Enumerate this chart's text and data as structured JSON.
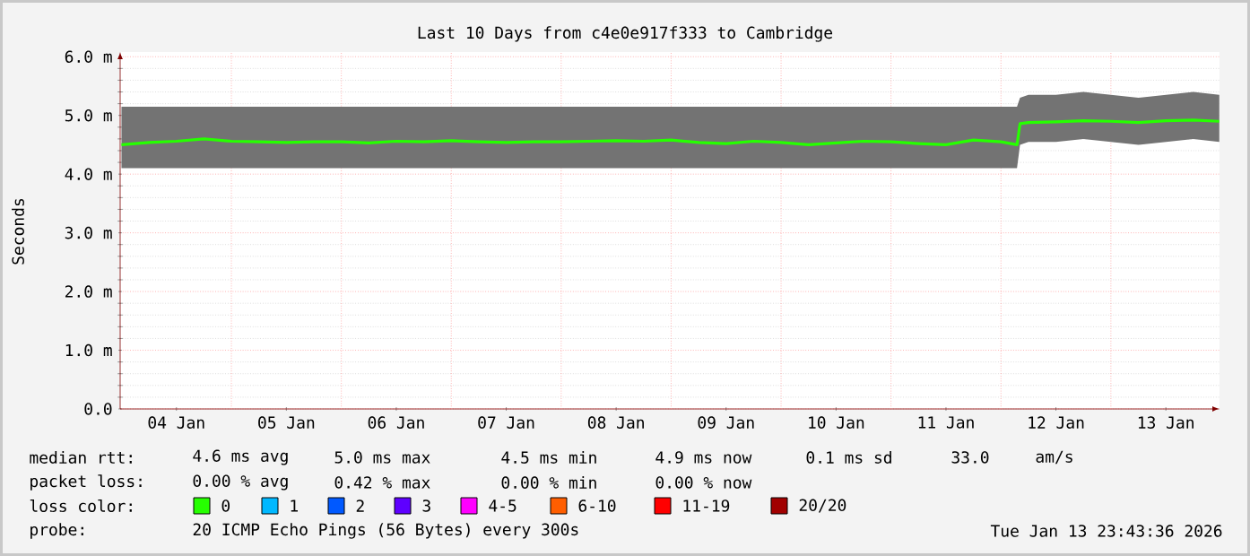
{
  "chart_data": {
    "type": "line",
    "title": "Last 10 Days from c4e0e917f333 to Cambridge",
    "ylabel": "Seconds",
    "legend_title": "loss color:",
    "legend": "bottom",
    "grid": true,
    "xlim": [
      "2026-01-03T23:43",
      "2026-01-13T23:43"
    ],
    "ylim": [
      0,
      6.08
    ],
    "xticks": [
      {
        "value": "2026-01-04T12:00",
        "label": "04 Jan"
      },
      {
        "value": "2026-01-05T00:00",
        "label": null
      },
      {
        "value": "2026-01-05T12:00",
        "label": "05 Jan"
      },
      {
        "value": "2026-01-06T00:00",
        "label": null
      },
      {
        "value": "2026-01-06T12:00",
        "label": "06 Jan"
      },
      {
        "value": "2026-01-07T00:00",
        "label": null
      },
      {
        "value": "2026-01-07T12:00",
        "label": "07 Jan"
      },
      {
        "value": "2026-01-08T00:00",
        "label": null
      },
      {
        "value": "2026-01-08T12:00",
        "label": "08 Jan"
      },
      {
        "value": "2026-01-09T00:00",
        "label": null
      },
      {
        "value": "2026-01-09T12:00",
        "label": "09 Jan"
      },
      {
        "value": "2026-01-10T00:00",
        "label": null
      },
      {
        "value": "2026-01-10T12:00",
        "label": "10 Jan"
      },
      {
        "value": "2026-01-11T00:00",
        "label": null
      },
      {
        "value": "2026-01-11T12:00",
        "label": "11 Jan"
      },
      {
        "value": "2026-01-12T00:00",
        "label": null
      },
      {
        "value": "2026-01-12T12:00",
        "label": "12 Jan"
      },
      {
        "value": "2026-01-13T00:00",
        "label": null
      },
      {
        "value": "2026-01-13T12:00",
        "label": "13 Jan"
      }
    ],
    "yticks": [
      {
        "value": 0,
        "label": "0.0"
      },
      {
        "value": 1,
        "label": "1.0 m"
      },
      {
        "value": 2,
        "label": "2.0 m"
      },
      {
        "value": 3,
        "label": "3.0 m"
      },
      {
        "value": 4,
        "label": "4.0 m"
      },
      {
        "value": 5,
        "label": "5.0 m"
      },
      {
        "value": 6,
        "label": "6.0 m"
      }
    ],
    "x": [
      "2026-01-04T00:00",
      "2026-01-04T06:00",
      "2026-01-04T12:00",
      "2026-01-04T18:00",
      "2026-01-05T00:00",
      "2026-01-05T06:00",
      "2026-01-05T12:00",
      "2026-01-05T18:00",
      "2026-01-06T00:00",
      "2026-01-06T06:00",
      "2026-01-06T12:00",
      "2026-01-06T18:00",
      "2026-01-07T00:00",
      "2026-01-07T06:00",
      "2026-01-07T12:00",
      "2026-01-07T18:00",
      "2026-01-08T00:00",
      "2026-01-08T06:00",
      "2026-01-08T12:00",
      "2026-01-08T18:00",
      "2026-01-09T00:00",
      "2026-01-09T06:00",
      "2026-01-09T12:00",
      "2026-01-09T18:00",
      "2026-01-10T00:00",
      "2026-01-10T06:00",
      "2026-01-10T12:00",
      "2026-01-10T18:00",
      "2026-01-11T00:00",
      "2026-01-11T06:00",
      "2026-01-11T12:00",
      "2026-01-11T18:00",
      "2026-01-12T00:00",
      "2026-01-12T03:30",
      "2026-01-12T04:10",
      "2026-01-12T06:00",
      "2026-01-12T12:00",
      "2026-01-12T18:00",
      "2026-01-13T00:00",
      "2026-01-13T06:00",
      "2026-01-13T12:00",
      "2026-01-13T18:00",
      "2026-01-13T23:40"
    ],
    "series": [
      {
        "name": "0",
        "color": "#26ff00",
        "values": [
          4.5,
          4.54,
          4.56,
          4.6,
          4.56,
          4.55,
          4.54,
          4.55,
          4.55,
          4.53,
          4.56,
          4.55,
          4.57,
          4.55,
          4.54,
          4.55,
          4.55,
          4.56,
          4.57,
          4.56,
          4.58,
          4.54,
          4.52,
          4.56,
          4.54,
          4.5,
          4.53,
          4.56,
          4.55,
          4.52,
          4.5,
          4.58,
          4.55,
          4.5,
          4.86,
          4.88,
          4.89,
          4.91,
          4.9,
          4.88,
          4.91,
          4.92,
          4.9
        ],
        "lower": [
          4.1,
          4.1,
          4.1,
          4.1,
          4.1,
          4.1,
          4.1,
          4.1,
          4.1,
          4.1,
          4.1,
          4.1,
          4.1,
          4.1,
          4.1,
          4.1,
          4.1,
          4.1,
          4.1,
          4.1,
          4.1,
          4.1,
          4.1,
          4.1,
          4.1,
          4.1,
          4.1,
          4.1,
          4.1,
          4.1,
          4.1,
          4.1,
          4.1,
          4.1,
          4.5,
          4.55,
          4.55,
          4.6,
          4.55,
          4.5,
          4.55,
          4.6,
          4.55
        ],
        "upper": [
          5.15,
          5.15,
          5.15,
          5.15,
          5.15,
          5.15,
          5.15,
          5.15,
          5.15,
          5.15,
          5.15,
          5.15,
          5.15,
          5.15,
          5.15,
          5.15,
          5.15,
          5.15,
          5.15,
          5.15,
          5.15,
          5.15,
          5.15,
          5.15,
          5.15,
          5.15,
          5.15,
          5.15,
          5.15,
          5.15,
          5.15,
          5.15,
          5.15,
          5.15,
          5.3,
          5.35,
          5.35,
          5.4,
          5.35,
          5.3,
          5.35,
          5.4,
          5.35
        ]
      },
      {
        "name": "1",
        "color": "#00b8ff",
        "values": [
          null,
          null,
          null,
          null,
          null,
          null,
          null,
          null,
          null,
          null,
          null,
          null,
          null,
          null,
          null,
          null,
          null,
          null,
          null,
          null,
          null,
          null,
          null,
          null,
          null,
          null,
          null,
          null,
          null,
          null,
          null,
          null,
          null,
          null,
          null,
          null,
          null,
          null,
          null,
          null,
          null,
          null,
          null
        ]
      },
      {
        "name": "2",
        "color": "#0059ff",
        "values": [
          null,
          null,
          null,
          null,
          null,
          null,
          null,
          null,
          null,
          null,
          null,
          null,
          null,
          null,
          null,
          null,
          null,
          null,
          null,
          null,
          null,
          null,
          null,
          null,
          null,
          null,
          null,
          null,
          null,
          null,
          null,
          null,
          null,
          null,
          null,
          null,
          null,
          null,
          null,
          null,
          null,
          null,
          null
        ]
      },
      {
        "name": "3",
        "color": "#5e00ff",
        "values": [
          null,
          null,
          null,
          null,
          null,
          null,
          null,
          null,
          null,
          null,
          null,
          null,
          null,
          null,
          null,
          null,
          null,
          null,
          null,
          null,
          null,
          null,
          null,
          null,
          null,
          null,
          null,
          null,
          null,
          null,
          null,
          null,
          null,
          null,
          null,
          null,
          null,
          null,
          null,
          null,
          null,
          null,
          null
        ]
      },
      {
        "name": "4-5",
        "color": "#ff00ff",
        "values": [
          null,
          null,
          null,
          null,
          null,
          null,
          null,
          null,
          null,
          null,
          null,
          null,
          null,
          null,
          null,
          null,
          null,
          null,
          null,
          null,
          null,
          null,
          null,
          null,
          null,
          null,
          null,
          null,
          null,
          null,
          null,
          null,
          null,
          null,
          null,
          null,
          null,
          null,
          null,
          null,
          null,
          null,
          null
        ]
      },
      {
        "name": "6-10",
        "color": "#ff5e00",
        "values": [
          null,
          null,
          null,
          null,
          null,
          null,
          null,
          null,
          null,
          null,
          null,
          null,
          null,
          null,
          null,
          null,
          null,
          null,
          null,
          null,
          null,
          null,
          null,
          null,
          null,
          null,
          null,
          null,
          null,
          null,
          null,
          null,
          null,
          null,
          null,
          null,
          null,
          null,
          null,
          null,
          null,
          null,
          null
        ]
      },
      {
        "name": "11-19",
        "color": "#ff0000",
        "values": [
          null,
          null,
          null,
          null,
          null,
          null,
          null,
          null,
          null,
          null,
          null,
          null,
          null,
          null,
          null,
          null,
          null,
          null,
          null,
          null,
          null,
          null,
          null,
          null,
          null,
          null,
          null,
          null,
          null,
          null,
          null,
          null,
          null,
          null,
          null,
          null,
          null,
          null,
          null,
          null,
          null,
          null,
          null
        ]
      },
      {
        "name": "20/20",
        "color": "#a10000",
        "values": [
          null,
          null,
          null,
          null,
          null,
          null,
          null,
          null,
          null,
          null,
          null,
          null,
          null,
          null,
          null,
          null,
          null,
          null,
          null,
          null,
          null,
          null,
          null,
          null,
          null,
          null,
          null,
          null,
          null,
          null,
          null,
          null,
          null,
          null,
          null,
          null,
          null,
          null,
          null,
          null,
          null,
          null,
          null
        ]
      }
    ],
    "annotations": [
      "median rtt:",
      "4.6 ms avg",
      "5.0 ms max",
      "4.5 ms min",
      "4.9 ms now",
      "0.1 ms sd",
      "33.0",
      "am/s",
      "packet loss:",
      "0.00 % avg",
      "0.42 % max",
      "0.00 % min",
      "0.00 % now",
      "probe:",
      "20 ICMP Echo Pings (56 Bytes) every 300s",
      "Tue Jan 13 23:43:36 2026"
    ]
  }
}
